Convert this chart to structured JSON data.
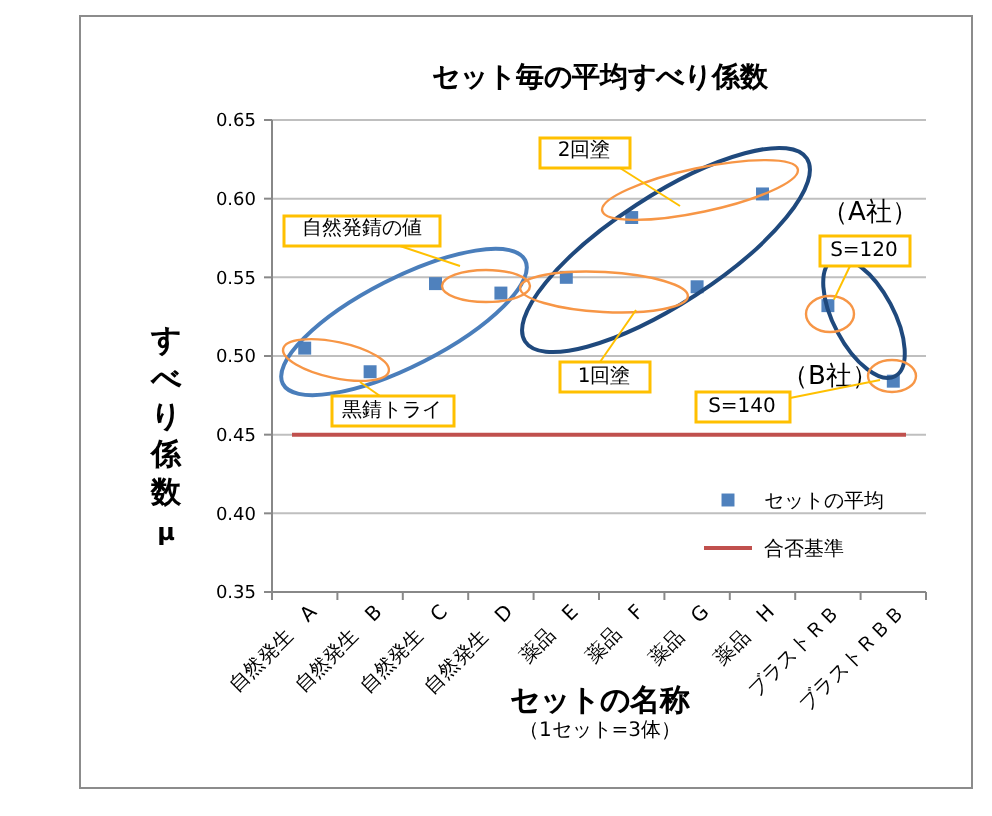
{
  "chart_data": {
    "type": "scatter",
    "title": "セット毎の平均すべり係数",
    "xlabel": "セットの名称",
    "ylabel": "すべり係数　μ",
    "categories": [
      "自然発生　A",
      "自然発生　B",
      "自然発生　C",
      "自然発生　D",
      "薬品　E",
      "薬品　F",
      "薬品　G",
      "薬品　H",
      "ブラストＲＢ",
      "ブラストＲＢＢ"
    ],
    "series": [
      {
        "name": "セットの平均",
        "color": "#4f81bd",
        "values": [
          0.505,
          0.49,
          0.546,
          0.54,
          0.55,
          0.588,
          0.544,
          0.603,
          0.532,
          0.484
        ]
      }
    ],
    "ylim": [
      0.35,
      0.65
    ],
    "yticks": [
      {
        "value": 0.35,
        "label": "0.35"
      },
      {
        "value": 0.4,
        "label": "0.40"
      },
      {
        "value": 0.45,
        "label": "0.45"
      },
      {
        "value": 0.5,
        "label": "0.50"
      },
      {
        "value": 0.55,
        "label": "0.55"
      },
      {
        "value": 0.6,
        "label": "0.60"
      },
      {
        "value": 0.65,
        "label": "0.65"
      }
    ],
    "grid": "y",
    "marker": "square",
    "legend": "right",
    "ref_lines": [
      {
        "axis": "y",
        "value": 0.45,
        "label": "合否基準",
        "color": "#c0504d"
      }
    ],
    "annotations": [
      "自然発錆の値",
      "2回塗",
      "1回塗",
      "黒錆トライ",
      "（A社）",
      {
        "text": "S=120",
        "x": "ブラストＲＢ",
        "y": 0.532
      },
      "（B社）",
      "S=140",
      "（1セット=3体）"
    ]
  }
}
